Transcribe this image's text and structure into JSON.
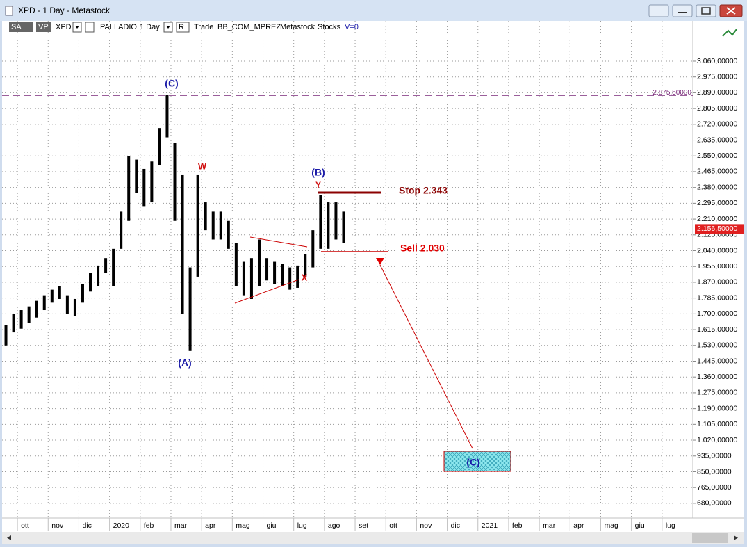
{
  "window": {
    "title": "XPD - 1 Day - Metastock"
  },
  "toolbar": {
    "items": [
      "SA",
      "VP",
      "XPD",
      "PALLADIO",
      "1 Day",
      "R",
      "Trade",
      "BB_COM_MPREZ",
      "Metastock",
      "Stocks",
      "V=0"
    ]
  },
  "chart_data": {
    "type": "range",
    "color": "#000000",
    "categories": [
      null,
      null,
      "ott",
      null,
      null,
      null,
      "nov",
      null,
      null,
      null,
      "dic",
      null,
      null,
      null,
      "2020",
      null,
      null,
      null,
      "feb",
      null,
      null,
      null,
      "mar",
      null,
      null,
      null,
      "apr",
      null,
      null,
      null,
      "mag",
      null,
      null,
      null,
      "giu",
      null,
      null,
      null,
      "lug",
      null,
      null,
      null,
      "ago",
      null,
      null,
      null,
      "set",
      null,
      null,
      null,
      "ott",
      null,
      null,
      null,
      "nov",
      null,
      null,
      null,
      "dic",
      null,
      null,
      null,
      "2021",
      null,
      null,
      null,
      "feb",
      null,
      null,
      null,
      "mar",
      null,
      null,
      null,
      "apr",
      null,
      null,
      null,
      "mag",
      null,
      null,
      null,
      "giu",
      null,
      null,
      null,
      "lug",
      null,
      null,
      null
    ],
    "highs": [
      1640,
      1700,
      1720,
      1740,
      1770,
      1800,
      1830,
      1850,
      1800,
      1780,
      1860,
      1920,
      1960,
      2000,
      2050,
      2250,
      2550,
      2530,
      2480,
      2520,
      2700,
      2880,
      2620,
      2450,
      1950,
      2450,
      2300,
      2250,
      2250,
      2200,
      2080,
      1980,
      2000,
      2100,
      2000,
      1980,
      1970,
      1950,
      1960,
      2020,
      2150,
      2340,
      2300,
      2300,
      2250,
      null,
      null,
      null,
      null,
      null,
      null,
      null,
      null,
      null,
      null,
      null,
      null,
      null,
      null,
      null,
      null,
      null,
      null,
      null,
      null,
      null,
      null,
      null,
      null,
      null,
      null,
      null,
      null,
      null,
      null,
      null,
      null,
      null,
      null,
      null,
      null,
      null,
      null,
      null,
      null,
      null,
      null,
      null,
      null,
      null
    ],
    "lows": [
      1530,
      1600,
      1620,
      1650,
      1680,
      1720,
      1760,
      1780,
      1700,
      1690,
      1760,
      1820,
      1850,
      1920,
      1850,
      2050,
      2200,
      2350,
      2280,
      2300,
      2500,
      2650,
      2200,
      1700,
      1500,
      1900,
      2150,
      2100,
      2100,
      2050,
      1850,
      1800,
      1780,
      1850,
      1880,
      1860,
      1850,
      1830,
      1840,
      1900,
      1950,
      2050,
      2050,
      2100,
      2080,
      null,
      null,
      null,
      null,
      null,
      null,
      null,
      null,
      null,
      null,
      null,
      null,
      null,
      null,
      null,
      null,
      null,
      null,
      null,
      null,
      null,
      null,
      null,
      null,
      null,
      null,
      null,
      null,
      null,
      null,
      null,
      null,
      null,
      null,
      null,
      null,
      null,
      null,
      null,
      null,
      null,
      null,
      null,
      null,
      null
    ],
    "ylim": [
      601,
      3277
    ],
    "yticks": [
      {
        "value": 680,
        "label": "680,00000"
      },
      {
        "value": 765,
        "label": "765,00000"
      },
      {
        "value": 850,
        "label": "850,00000"
      },
      {
        "value": 935,
        "label": "935,00000"
      },
      {
        "value": 1020,
        "label": "1.020,00000"
      },
      {
        "value": 1105,
        "label": "1.105,00000"
      },
      {
        "value": 1190,
        "label": "1.190,00000"
      },
      {
        "value": 1275,
        "label": "1.275,00000"
      },
      {
        "value": 1360,
        "label": "1.360,00000"
      },
      {
        "value": 1445,
        "label": "1.445,00000"
      },
      {
        "value": 1530,
        "label": "1.530,00000"
      },
      {
        "value": 1615,
        "label": "1.615,00000"
      },
      {
        "value": 1700,
        "label": "1.700,00000"
      },
      {
        "value": 1785,
        "label": "1.785,00000"
      },
      {
        "value": 1870,
        "label": "1.870,00000"
      },
      {
        "value": 1955,
        "label": "1.955,00000"
      },
      {
        "value": 2040,
        "label": "2.040,00000"
      },
      {
        "value": 2125,
        "label": "2.125,00000"
      },
      {
        "value": 2210,
        "label": "2.210,00000"
      },
      {
        "value": 2295,
        "label": "2.295,00000"
      },
      {
        "value": 2380,
        "label": "2.380,00000"
      },
      {
        "value": 2465,
        "label": "2.465,00000"
      },
      {
        "value": 2550,
        "label": "2.550,00000"
      },
      {
        "value": 2635,
        "label": "2.635,00000"
      },
      {
        "value": 2720,
        "label": "2.720,00000"
      },
      {
        "value": 2805,
        "label": "2.805,00000"
      },
      {
        "value": 2890,
        "label": "2.890,00000"
      },
      {
        "value": 2975,
        "label": "2.975,00000"
      },
      {
        "value": 3060,
        "label": "3.060,00000"
      }
    ],
    "grid": true,
    "hline": {
      "value": 2875.5,
      "label": "2.875,50000",
      "color": "#7a2a7a"
    },
    "last_price": {
      "value": 2156.5,
      "label": "2.156,50000",
      "color": "#e02020"
    },
    "annotations": [
      "(C)",
      "W",
      "(A)",
      "(B)",
      "Y",
      "X",
      "Stop 2.343",
      "Sell 2.030",
      "(C)"
    ]
  }
}
